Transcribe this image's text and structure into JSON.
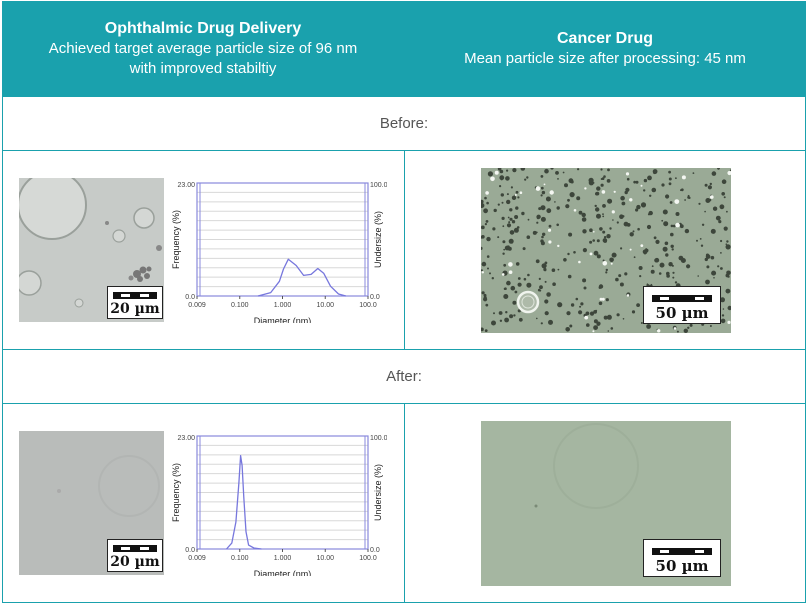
{
  "header": {
    "left": {
      "title": "Ophthalmic Drug Delivery",
      "subtitle_line1": "Achieved target average particle size of 96 nm",
      "subtitle_line2": "with improved stabiltiy"
    },
    "right": {
      "title": "Cancer Drug",
      "subtitle": "Mean particle size after processing: 45 nm"
    }
  },
  "sections": {
    "before_label": "Before:",
    "after_label": "After:"
  },
  "scale_bars": {
    "ophthalmic": "20 µm",
    "cancer": "50 µm"
  },
  "colors": {
    "header_bg": "#1aa1ad",
    "curve": "#7777dd",
    "grid": "#d8d8d8"
  },
  "chart_data": [
    {
      "type": "line",
      "title": "",
      "xlabel": "Diameter (nm)",
      "ylabel": "Frequency (%)",
      "y2label": "Undersize (%)",
      "xscale": "log",
      "xlim": [
        0.009,
        100.0
      ],
      "ylim": [
        0.0,
        23.0
      ],
      "y2lim": [
        0.0,
        100.0
      ],
      "xticks": [
        "0.009",
        "0.100",
        "1.000",
        "10.00",
        "100.0"
      ],
      "yticks": [
        "23.00",
        "0.0"
      ],
      "y2ticks": [
        "100.0",
        "0.0"
      ],
      "grid": true,
      "x": [
        0.25,
        0.5,
        0.8,
        1.0,
        1.3,
        2.0,
        3.0,
        4.5,
        6.5,
        9.0,
        13,
        20,
        30
      ],
      "values": [
        0,
        0.7,
        3.0,
        5.5,
        7.5,
        6.2,
        4.2,
        4.4,
        5.6,
        4.6,
        2.0,
        0.4,
        0
      ]
    },
    {
      "type": "line",
      "title": "",
      "xlabel": "Diameter (nm)",
      "ylabel": "Frequency (%)",
      "y2label": "Undersize (%)",
      "xscale": "log",
      "xlim": [
        0.009,
        100.0
      ],
      "ylim": [
        0.0,
        23.0
      ],
      "y2lim": [
        0.0,
        100.0
      ],
      "xticks": [
        "0.009",
        "0.100",
        "1.000",
        "10.00",
        "100.0"
      ],
      "yticks": [
        "23.00",
        "0.0"
      ],
      "y2ticks": [
        "100.0",
        "0.0"
      ],
      "grid": true,
      "x": [
        0.045,
        0.06,
        0.075,
        0.088,
        0.097,
        0.105,
        0.115,
        0.13,
        0.15,
        0.2,
        0.3
      ],
      "values": [
        0,
        1.2,
        5.5,
        13.5,
        19.0,
        17.0,
        10.5,
        3.5,
        0.8,
        0.2,
        0
      ]
    }
  ]
}
